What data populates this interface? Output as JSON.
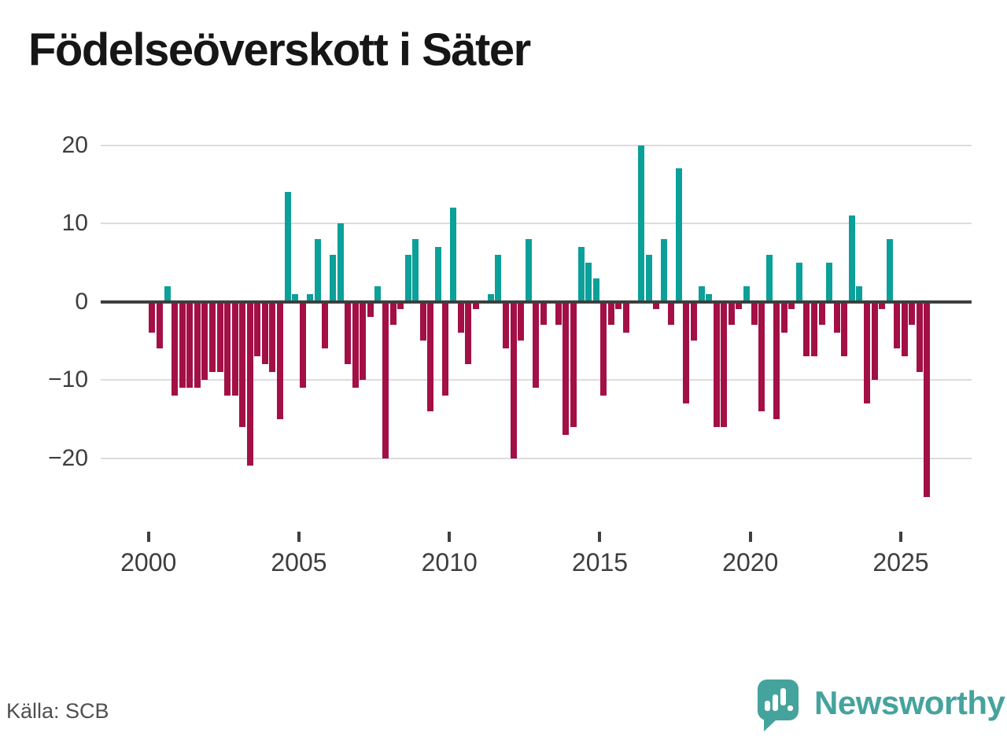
{
  "title": "Födelseöverskott i Säter",
  "source": "Källa: SCB",
  "brand": {
    "name": "Newsworthy",
    "logo_icon": "bar-chart-speech-bubble-icon"
  },
  "colors": {
    "positive": "#0ba099",
    "negative": "#a31045",
    "logo_teal": "#45a39d",
    "gridline": "#dcdcdc",
    "zero_line": "#3e3e3e",
    "axis_text": "#3d3d3d",
    "title_text": "#161616",
    "source_text": "#4f4f4f"
  },
  "y_axis": {
    "ticks": [
      {
        "label": "20",
        "value": 20
      },
      {
        "label": "10",
        "value": 10
      },
      {
        "label": "0",
        "value": 0
      },
      {
        "label": "−10",
        "value": -10
      },
      {
        "label": "−20",
        "value": -20
      }
    ]
  },
  "x_axis": {
    "ticks": [
      {
        "label": "2000",
        "year": 2000
      },
      {
        "label": "2005",
        "year": 2005
      },
      {
        "label": "2010",
        "year": 2010
      },
      {
        "label": "2015",
        "year": 2015
      },
      {
        "label": "2020",
        "year": 2020
      },
      {
        "label": "2025",
        "year": 2025
      }
    ]
  },
  "chart_data": {
    "type": "bar",
    "title": "Födelseöverskott i Säter",
    "xlabel": "",
    "ylabel": "",
    "ylim": [
      -26,
      21
    ],
    "grid": "horizontal",
    "legend": "none",
    "frequency": "quarterly",
    "categories": [
      "2000Q1",
      "2000Q2",
      "2000Q3",
      "2000Q4",
      "2001Q1",
      "2001Q2",
      "2001Q3",
      "2001Q4",
      "2002Q1",
      "2002Q2",
      "2002Q3",
      "2002Q4",
      "2003Q1",
      "2003Q2",
      "2003Q3",
      "2003Q4",
      "2004Q1",
      "2004Q2",
      "2004Q3",
      "2004Q4",
      "2005Q1",
      "2005Q2",
      "2005Q3",
      "2005Q4",
      "2006Q1",
      "2006Q2",
      "2006Q3",
      "2006Q4",
      "2007Q1",
      "2007Q2",
      "2007Q3",
      "2007Q4",
      "2008Q1",
      "2008Q2",
      "2008Q3",
      "2008Q4",
      "2009Q1",
      "2009Q2",
      "2009Q3",
      "2009Q4",
      "2010Q1",
      "2010Q2",
      "2010Q3",
      "2010Q4",
      "2011Q1",
      "2011Q2",
      "2011Q3",
      "2011Q4",
      "2012Q1",
      "2012Q2",
      "2012Q3",
      "2012Q4",
      "2013Q1",
      "2013Q2",
      "2013Q3",
      "2013Q4",
      "2014Q1",
      "2014Q2",
      "2014Q3",
      "2014Q4",
      "2015Q1",
      "2015Q2",
      "2015Q3",
      "2015Q4",
      "2016Q1",
      "2016Q2",
      "2016Q3",
      "2016Q4",
      "2017Q1",
      "2017Q2",
      "2017Q3",
      "2017Q4",
      "2018Q1",
      "2018Q2",
      "2018Q3",
      "2018Q4",
      "2019Q1",
      "2019Q2",
      "2019Q3",
      "2019Q4",
      "2020Q1",
      "2020Q2",
      "2020Q3",
      "2020Q4",
      "2021Q1",
      "2021Q2",
      "2021Q3",
      "2021Q4",
      "2022Q1",
      "2022Q2",
      "2022Q3",
      "2022Q4",
      "2023Q1",
      "2023Q2",
      "2023Q3",
      "2023Q4",
      "2024Q1",
      "2024Q2",
      "2024Q3",
      "2024Q4",
      "2025Q1",
      "2025Q2",
      "2025Q3",
      "2025Q4"
    ],
    "values": [
      -4,
      -6,
      2,
      -12,
      -11,
      -11,
      -11,
      -10,
      -9,
      -9,
      -12,
      -12,
      -16,
      -21,
      -7,
      -8,
      -9,
      -15,
      14,
      1,
      -11,
      1,
      8,
      -6,
      6,
      10,
      -8,
      -11,
      -10,
      -2,
      2,
      -20,
      -3,
      -1,
      6,
      8,
      -5,
      -14,
      7,
      -12,
      12,
      -4,
      -8,
      -1,
      0,
      1,
      6,
      -6,
      -20,
      -5,
      8,
      -11,
      -3,
      0,
      -3,
      -17,
      -16,
      7,
      5,
      3,
      -12,
      -3,
      -1,
      -4,
      0,
      20,
      6,
      -1,
      8,
      -3,
      17,
      -13,
      -5,
      2,
      1,
      -16,
      -16,
      -3,
      -1,
      2,
      -3,
      -14,
      6,
      -15,
      -4,
      -1,
      5,
      -7,
      -7,
      -3,
      5,
      -4,
      -7,
      11,
      2,
      -13,
      -10,
      -1,
      8,
      -6,
      -7,
      -3,
      -9,
      -25
    ]
  }
}
